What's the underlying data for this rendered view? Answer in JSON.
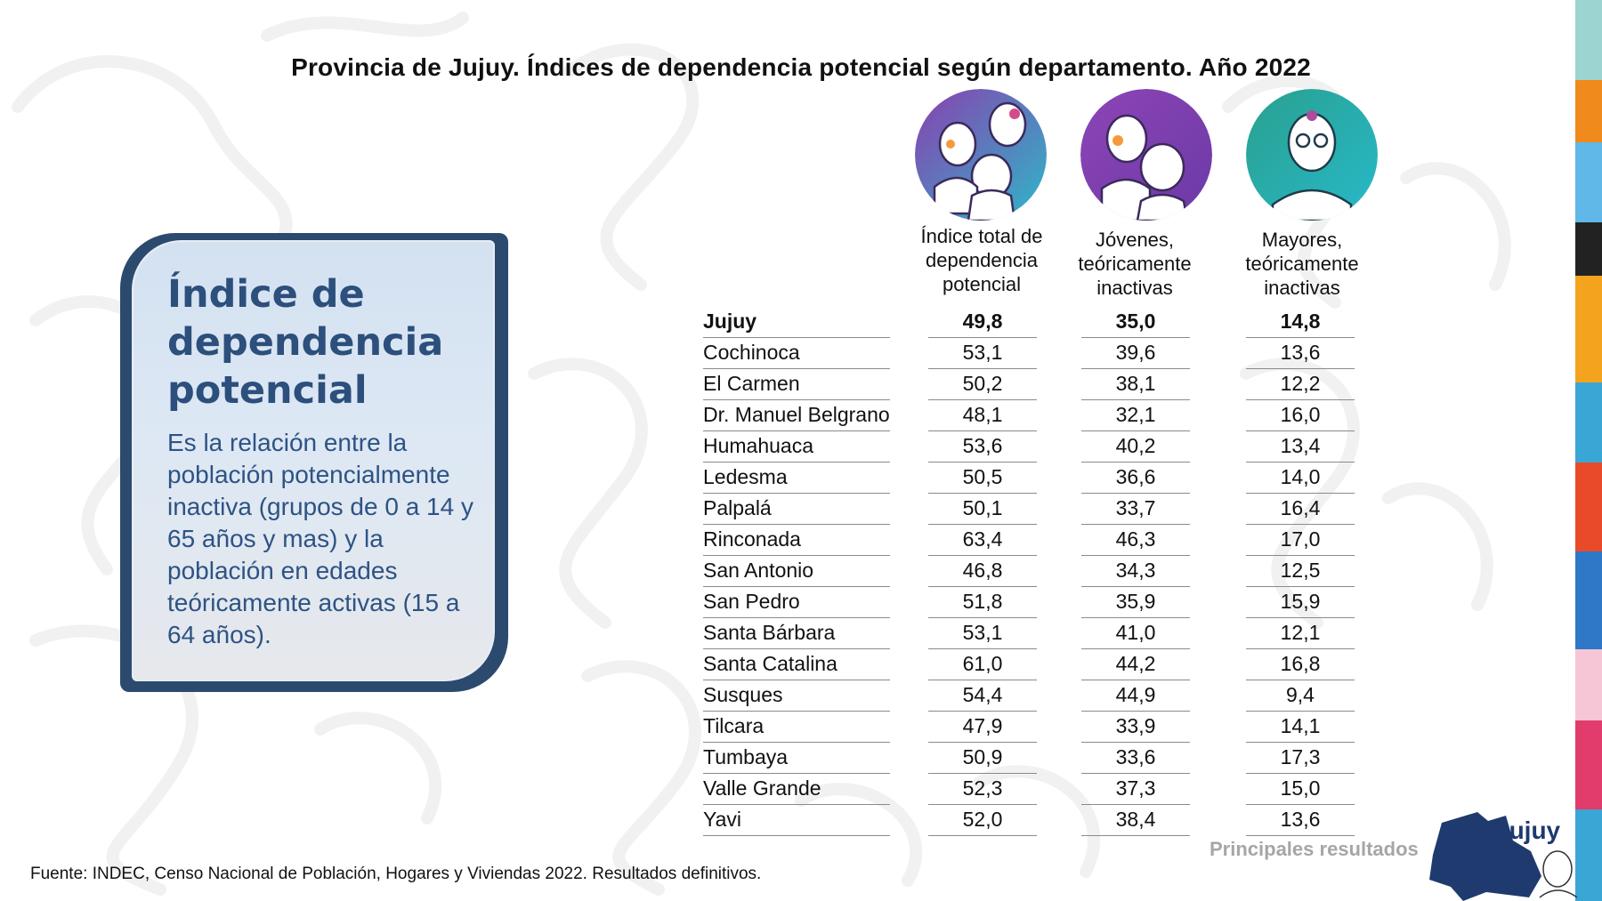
{
  "title": "Provincia de Jujuy. Índices de dependencia potencial según departamento. Año 2022",
  "definition": {
    "heading": "Índice de dependencia potencial",
    "body": "Es la relación entre la población potencialmente inactiva (grupos de 0 a 14 y 65 años y mas) y la población en edades teóricamente activas (15 a 64 años)."
  },
  "columns": [
    {
      "label": "Índice total de dependencia potencial",
      "icon": "family-icon",
      "color": "#7b3fa8"
    },
    {
      "label": "Jóvenes, teóricamente inactivas",
      "icon": "youth-icon",
      "color": "#8a42b0"
    },
    {
      "label": "Mayores, teóricamente inactivas",
      "icon": "elder-icon",
      "color": "#2aa8a0"
    }
  ],
  "rows": [
    {
      "dept": "Jujuy",
      "total": "49,8",
      "jovenes": "35,0",
      "mayores": "14,8"
    },
    {
      "dept": "Cochinoca",
      "total": "53,1",
      "jovenes": "39,6",
      "mayores": "13,6"
    },
    {
      "dept": "El Carmen",
      "total": "50,2",
      "jovenes": "38,1",
      "mayores": "12,2"
    },
    {
      "dept": "Dr. Manuel Belgrano",
      "total": "48,1",
      "jovenes": "32,1",
      "mayores": "16,0"
    },
    {
      "dept": "Humahuaca",
      "total": "53,6",
      "jovenes": "40,2",
      "mayores": "13,4"
    },
    {
      "dept": "Ledesma",
      "total": "50,5",
      "jovenes": "36,6",
      "mayores": "14,0"
    },
    {
      "dept": "Palpalá",
      "total": "50,1",
      "jovenes": "33,7",
      "mayores": "16,4"
    },
    {
      "dept": "Rinconada",
      "total": "63,4",
      "jovenes": "46,3",
      "mayores": "17,0"
    },
    {
      "dept": "San Antonio",
      "total": "46,8",
      "jovenes": "34,3",
      "mayores": "12,5"
    },
    {
      "dept": "San Pedro",
      "total": "51,8",
      "jovenes": "35,9",
      "mayores": "15,9"
    },
    {
      "dept": "Santa Bárbara",
      "total": "53,1",
      "jovenes": "41,0",
      "mayores": "12,1"
    },
    {
      "dept": "Santa Catalina",
      "total": "61,0",
      "jovenes": "44,2",
      "mayores": "16,8"
    },
    {
      "dept": "Susques",
      "total": "54,4",
      "jovenes": "44,9",
      "mayores": "9,4"
    },
    {
      "dept": "Tilcara",
      "total": "47,9",
      "jovenes": "33,9",
      "mayores": "14,1"
    },
    {
      "dept": "Tumbaya",
      "total": "50,9",
      "jovenes": "33,6",
      "mayores": "17,3"
    },
    {
      "dept": "Valle Grande",
      "total": "52,3",
      "jovenes": "37,3",
      "mayores": "15,0"
    },
    {
      "dept": "Yavi",
      "total": "52,0",
      "jovenes": "38,4",
      "mayores": "13,6"
    }
  ],
  "source": "Fuente: INDEC, Censo Nacional de Población, Hogares y Viviendas 2022. Resultados definitivos.",
  "branding": {
    "subtitle": "Principales resultados",
    "logo_text": "Jujuy",
    "logo_color": "#1e3a6e"
  }
}
